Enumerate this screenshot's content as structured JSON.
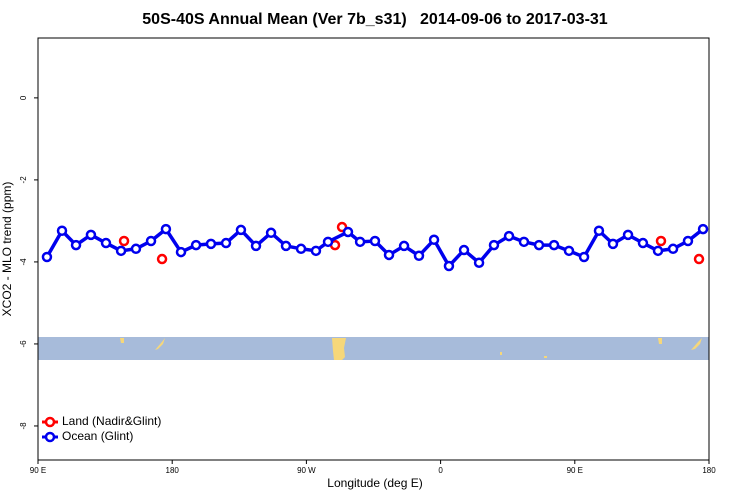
{
  "chart_data": {
    "type": "line",
    "title": "50S-40S Annual Mean (Ver 7b_s31)   2014-09-06 to 2017-03-31",
    "x_label": "Longitude (deg E)",
    "y_label": "XCO2 - MLO trend (ppm)",
    "xlim": [
      90,
      540
    ],
    "ylim": [
      -8.83,
      1.46
    ],
    "xticks": [
      {
        "value": 90,
        "label": "90 E"
      },
      {
        "value": 180,
        "label": "180"
      },
      {
        "value": 270,
        "label": "90 W"
      },
      {
        "value": 360,
        "label": "0"
      },
      {
        "value": 450,
        "label": "90 E"
      },
      {
        "value": 540,
        "label": "180"
      }
    ],
    "yticks": [
      0,
      -2,
      -4,
      -6,
      -8
    ],
    "legend": "bottom-left",
    "series": [
      {
        "name": "Land (Nadir&Glint)",
        "color": "#ff0000",
        "show_line": false,
        "x": [
          147.7,
          173.2,
          289.2,
          293.9,
          507.8,
          533.3
        ],
        "values": [
          -3.49,
          -3.93,
          -3.59,
          -3.15,
          -3.49,
          -3.93
        ]
      },
      {
        "name": "Ocean (Glint)",
        "color": "#0000ee",
        "show_line": true,
        "x": [
          96.0,
          106.1,
          115.5,
          125.5,
          135.6,
          145.7,
          155.7,
          165.8,
          175.8,
          185.9,
          196.0,
          206.0,
          216.1,
          226.1,
          236.2,
          246.3,
          256.3,
          266.4,
          276.4,
          284.5,
          297.9,
          306.0,
          316.0,
          325.4,
          335.5,
          345.5,
          355.6,
          365.6,
          375.7,
          385.8,
          395.8,
          405.9,
          415.9,
          426.0,
          436.1,
          446.1,
          456.2,
          466.2,
          475.6,
          485.7,
          495.7,
          505.8,
          515.9,
          525.9,
          536.0
        ],
        "values": [
          -3.88,
          -3.24,
          -3.59,
          -3.34,
          -3.54,
          -3.73,
          -3.68,
          -3.49,
          -3.2,
          -3.76,
          -3.59,
          -3.56,
          -3.54,
          -3.22,
          -3.61,
          -3.29,
          -3.61,
          -3.68,
          -3.73,
          -3.51,
          -3.27,
          -3.51,
          -3.49,
          -3.83,
          -3.61,
          -3.85,
          -3.46,
          -4.1,
          -3.71,
          -4.02,
          -3.59,
          -3.37,
          -3.51,
          -3.59,
          -3.59,
          -3.73,
          -3.88,
          -3.24,
          -3.56,
          -3.34,
          -3.54,
          -3.73,
          -3.68,
          -3.49,
          -3.2
        ]
      }
    ]
  }
}
